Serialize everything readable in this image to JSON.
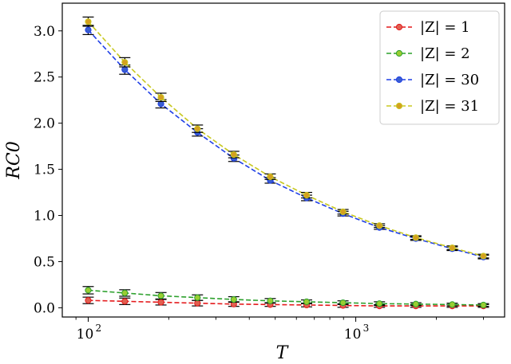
{
  "chart_data": {
    "type": "line",
    "xlabel": "T",
    "ylabel": "RC0",
    "x_scale": "log",
    "xlim": [
      80,
      3600
    ],
    "ylim": [
      -0.1,
      3.3
    ],
    "x_ticks": [
      100,
      1000
    ],
    "x_tick_labels": [
      "10",
      "10"
    ],
    "x_tick_exponents": [
      "2",
      "3"
    ],
    "y_ticks": [
      0.0,
      0.5,
      1.0,
      1.5,
      2.0,
      2.5,
      3.0
    ],
    "y_tick_labels": [
      "0.0",
      "0.5",
      "1.0",
      "1.5",
      "2.0",
      "2.5",
      "3.0"
    ],
    "legend_position": "top-right",
    "x": [
      100,
      137,
      187,
      256,
      350,
      479,
      655,
      896,
      1226,
      1677,
      2294,
      3000
    ],
    "series": [
      {
        "name": "|Z| = 1",
        "color": "#e41a1c",
        "marker_color": "#e06050",
        "values": [
          0.08,
          0.07,
          0.06,
          0.05,
          0.04,
          0.035,
          0.03,
          0.025,
          0.02,
          0.02,
          0.02,
          0.02
        ],
        "error": [
          0.035,
          0.035,
          0.03,
          0.03,
          0.025,
          0.02,
          0.02,
          0.02,
          0.015,
          0.015,
          0.015,
          0.015
        ]
      },
      {
        "name": "|Z| = 2",
        "color": "#2ca02c",
        "marker_color": "#9acd32",
        "values": [
          0.19,
          0.16,
          0.13,
          0.11,
          0.09,
          0.075,
          0.065,
          0.055,
          0.045,
          0.04,
          0.035,
          0.03
        ],
        "error": [
          0.04,
          0.035,
          0.035,
          0.03,
          0.03,
          0.025,
          0.02,
          0.02,
          0.02,
          0.015,
          0.015,
          0.015
        ]
      },
      {
        "name": "|Z| = 30",
        "color": "#1f3fe6",
        "marker_color": "#3a5fd0",
        "values": [
          3.01,
          2.58,
          2.21,
          1.9,
          1.62,
          1.38,
          1.19,
          1.02,
          0.87,
          0.75,
          0.64,
          0.55
        ],
        "error": [
          0.05,
          0.05,
          0.045,
          0.04,
          0.035,
          0.03,
          0.03,
          0.025,
          0.02,
          0.02,
          0.02,
          0.02
        ]
      },
      {
        "name": "|Z| = 31",
        "color": "#c8c820",
        "marker_color": "#d4a020",
        "values": [
          3.1,
          2.66,
          2.28,
          1.94,
          1.66,
          1.42,
          1.22,
          1.04,
          0.89,
          0.76,
          0.65,
          0.56
        ],
        "error": [
          0.05,
          0.05,
          0.045,
          0.04,
          0.035,
          0.03,
          0.03,
          0.025,
          0.02,
          0.02,
          0.02,
          0.02
        ]
      }
    ]
  }
}
